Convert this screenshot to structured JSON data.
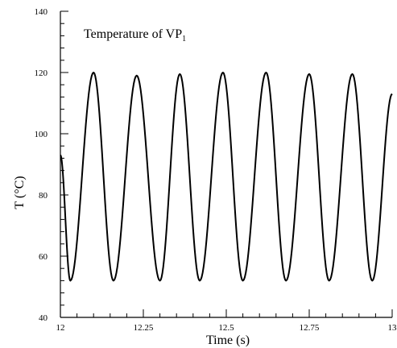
{
  "chart_data": {
    "type": "line",
    "title": "",
    "annotation": {
      "prefix": "Temperature of VP",
      "subscript": "1"
    },
    "xlabel": "Time (s)",
    "ylabel": "T (°C)",
    "xlim": [
      12,
      13
    ],
    "ylim": [
      40,
      140
    ],
    "x_ticks": [
      "12",
      "12.25",
      "12.5",
      "12.75",
      "13"
    ],
    "y_ticks": [
      "40",
      "60",
      "80",
      "100",
      "120",
      "140"
    ],
    "grid": false,
    "series": [
      {
        "name": "",
        "x": [
          12.0,
          12.03,
          12.1,
          12.16,
          12.23,
          12.3,
          12.36,
          12.42,
          12.49,
          12.55,
          12.62,
          12.68,
          12.75,
          12.81,
          12.88,
          12.94,
          13.0
        ],
        "y": [
          93,
          52,
          120,
          52,
          119,
          52,
          119.5,
          52,
          120,
          52,
          120,
          52,
          119.5,
          52,
          119.5,
          52,
          113
        ]
      }
    ]
  }
}
